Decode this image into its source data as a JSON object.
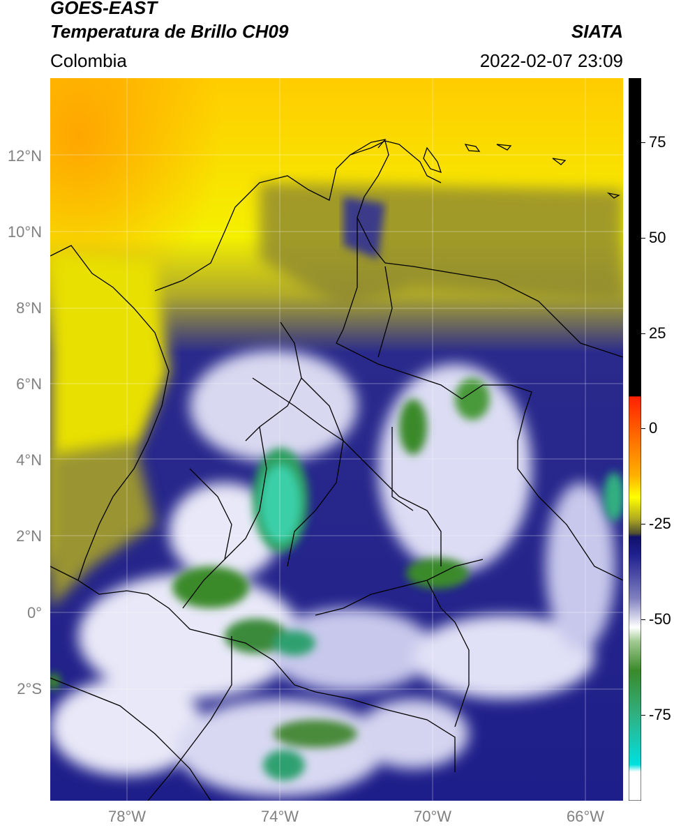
{
  "header": {
    "satellite": "GOES-EAST",
    "product": "Temperatura de Brillo CH09",
    "region": "Colombia",
    "organization": "SIATA",
    "datetime": "2022-02-07 23:09"
  },
  "map": {
    "lat_labels": [
      "12°N",
      "10°N",
      "8°N",
      "6°N",
      "4°N",
      "2°N",
      "0°",
      "2°S"
    ],
    "lon_labels": [
      "78°W",
      "74°W",
      "70°W",
      "66°W"
    ],
    "gridlines": true
  },
  "colorbar": {
    "tick_labels": [
      "75",
      "50",
      "25",
      "0",
      "-25",
      "-50",
      "-75"
    ],
    "range": [
      -95,
      90
    ],
    "colors": {
      "above": "#000000",
      "warm": "#ff2000",
      "orange": "#ffa000",
      "yellow": "#ffff00",
      "olive": "#60601e",
      "navy": "#1a1a8c",
      "white": "#ffffff",
      "green": "#3a8a2a",
      "teal": "#30d0a0",
      "cyan": "#00e0e8"
    }
  }
}
